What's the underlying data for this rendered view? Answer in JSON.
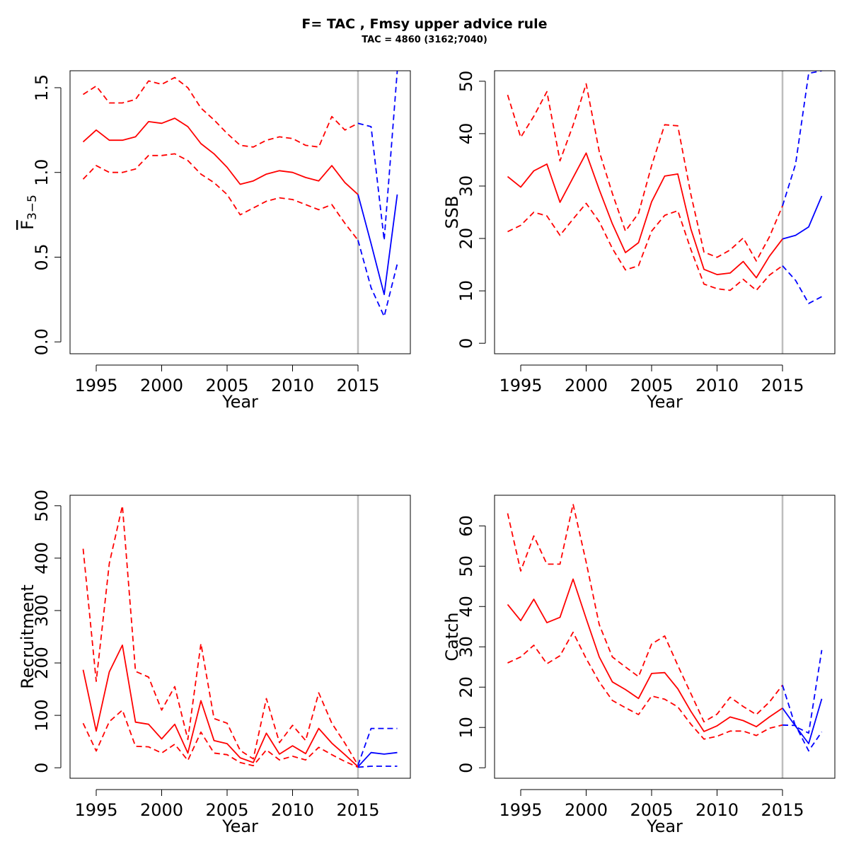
{
  "title": "F= TAC , Fmsy upper advice rule",
  "subtitle": "TAC = 4860 (3162;7040)",
  "colors": {
    "historical": "#ff0000",
    "forecast": "#0000ff",
    "reference_line": "#bebebe",
    "frame": "#000000"
  },
  "chart_data": [
    {
      "type": "line",
      "panel": "top-left",
      "xlabel": "Year",
      "ylabel": "F",
      "ylabel_sub": "3−5",
      "ylabel_overline": true,
      "xlim": [
        1993,
        2019
      ],
      "ylim": [
        -0.07,
        1.6
      ],
      "xticks": [
        1995,
        2000,
        2005,
        2010,
        2015
      ],
      "yticks": [
        0.0,
        0.5,
        1.0,
        1.5
      ],
      "ytick_labels": [
        "0.0",
        "0.5",
        "1.0",
        "1.5"
      ],
      "reference_year": 2015,
      "series": [
        {
          "role": "historical",
          "style": "solid",
          "x": [
            1994,
            1995,
            1996,
            1997,
            1998,
            1999,
            2000,
            2001,
            2002,
            2003,
            2004,
            2005,
            2006,
            2007,
            2008,
            2009,
            2010,
            2011,
            2012,
            2013,
            2014,
            2015
          ],
          "y": [
            1.18,
            1.25,
            1.19,
            1.19,
            1.21,
            1.3,
            1.29,
            1.32,
            1.27,
            1.17,
            1.11,
            1.03,
            0.93,
            0.95,
            0.99,
            1.01,
            1.0,
            0.97,
            0.95,
            1.04,
            0.94,
            0.87
          ]
        },
        {
          "role": "historical",
          "style": "dashed",
          "x": [
            1994,
            1995,
            1996,
            1997,
            1998,
            1999,
            2000,
            2001,
            2002,
            2003,
            2004,
            2005,
            2006,
            2007,
            2008,
            2009,
            2010,
            2011,
            2012,
            2013,
            2014,
            2015
          ],
          "y": [
            1.46,
            1.51,
            1.41,
            1.41,
            1.43,
            1.54,
            1.52,
            1.56,
            1.5,
            1.38,
            1.31,
            1.23,
            1.16,
            1.15,
            1.19,
            1.21,
            1.2,
            1.16,
            1.15,
            1.33,
            1.25,
            1.29
          ]
        },
        {
          "role": "historical",
          "style": "dashed",
          "x": [
            1994,
            1995,
            1996,
            1997,
            1998,
            1999,
            2000,
            2001,
            2002,
            2003,
            2004,
            2005,
            2006,
            2007,
            2008,
            2009,
            2010,
            2011,
            2012,
            2013,
            2014,
            2015
          ],
          "y": [
            0.96,
            1.04,
            1.0,
            1.0,
            1.02,
            1.1,
            1.1,
            1.11,
            1.07,
            0.99,
            0.94,
            0.87,
            0.75,
            0.79,
            0.83,
            0.85,
            0.84,
            0.81,
            0.78,
            0.81,
            0.7,
            0.6
          ]
        },
        {
          "role": "forecast",
          "style": "solid",
          "x": [
            2015,
            2016,
            2017,
            2018
          ],
          "y": [
            0.87,
            0.58,
            0.28,
            0.87
          ]
        },
        {
          "role": "forecast",
          "style": "dashed",
          "x": [
            2015,
            2016,
            2017,
            2018
          ],
          "y": [
            1.29,
            1.27,
            0.6,
            1.6
          ]
        },
        {
          "role": "forecast",
          "style": "dashed",
          "x": [
            2015,
            2016,
            2017,
            2018
          ],
          "y": [
            0.6,
            0.32,
            0.15,
            0.46
          ]
        }
      ]
    },
    {
      "type": "line",
      "panel": "top-right",
      "xlabel": "Year",
      "ylabel": "SSB",
      "xlim": [
        1993,
        2019
      ],
      "ylim": [
        -2,
        52
      ],
      "xticks": [
        1995,
        2000,
        2005,
        2010,
        2015
      ],
      "yticks": [
        0,
        10,
        20,
        30,
        40,
        50
      ],
      "ytick_labels": [
        "0",
        "10",
        "20",
        "30",
        "40",
        "50"
      ],
      "reference_year": 2015,
      "series": [
        {
          "role": "historical",
          "style": "solid",
          "x": [
            1994,
            1995,
            1996,
            1997,
            1998,
            1999,
            2000,
            2001,
            2002,
            2003,
            2004,
            2005,
            2006,
            2007,
            2008,
            2009,
            2010,
            2011,
            2012,
            2013,
            2014,
            2015
          ],
          "y": [
            31.8,
            29.8,
            32.9,
            34.2,
            26.9,
            31.6,
            36.3,
            29.3,
            22.8,
            17.3,
            19.2,
            27.0,
            31.9,
            32.3,
            21.8,
            14.1,
            13.1,
            13.4,
            15.6,
            12.5,
            16.6,
            19.9
          ]
        },
        {
          "role": "historical",
          "style": "dashed",
          "x": [
            1994,
            1995,
            1996,
            1997,
            1998,
            1999,
            2000,
            2001,
            2002,
            2003,
            2004,
            2005,
            2006,
            2007,
            2008,
            2009,
            2010,
            2011,
            2012,
            2013,
            2014,
            2015
          ],
          "y": [
            47.4,
            39.3,
            43.3,
            48.0,
            34.8,
            41.6,
            49.5,
            36.6,
            28.6,
            21.4,
            24.8,
            33.9,
            41.7,
            41.5,
            28.4,
            17.4,
            16.4,
            17.8,
            20.1,
            15.7,
            20.3,
            26.2
          ]
        },
        {
          "role": "historical",
          "style": "dashed",
          "x": [
            1994,
            1995,
            1996,
            1997,
            1998,
            1999,
            2000,
            2001,
            2002,
            2003,
            2004,
            2005,
            2006,
            2007,
            2008,
            2009,
            2010,
            2011,
            2012,
            2013,
            2014,
            2015
          ],
          "y": [
            21.3,
            22.5,
            25.0,
            24.3,
            20.6,
            23.7,
            26.7,
            23.2,
            18.1,
            14.0,
            14.8,
            21.4,
            24.4,
            25.3,
            17.9,
            11.3,
            10.4,
            10.1,
            12.2,
            10.1,
            13.0,
            14.8
          ]
        },
        {
          "role": "forecast",
          "style": "solid",
          "x": [
            2015,
            2016,
            2017,
            2018
          ],
          "y": [
            19.9,
            20.6,
            22.2,
            28.1
          ]
        },
        {
          "role": "forecast",
          "style": "dashed",
          "x": [
            2015,
            2016,
            2017,
            2018
          ],
          "y": [
            26.2,
            34.2,
            51.5,
            52.0
          ]
        },
        {
          "role": "forecast",
          "style": "dashed",
          "x": [
            2015,
            2016,
            2017,
            2018
          ],
          "y": [
            14.8,
            12.0,
            7.6,
            8.9
          ]
        }
      ]
    },
    {
      "type": "line",
      "panel": "bottom-left",
      "xlabel": "Year",
      "ylabel": "Recruitment",
      "xlim": [
        1993,
        2019
      ],
      "ylim": [
        -20,
        520
      ],
      "xticks": [
        1995,
        2000,
        2005,
        2010,
        2015
      ],
      "yticks": [
        0,
        100,
        200,
        300,
        400,
        500
      ],
      "ytick_labels": [
        "0",
        "100",
        "200",
        "300",
        "400",
        "500"
      ],
      "reference_year": 2015,
      "series": [
        {
          "role": "historical",
          "style": "solid",
          "x": [
            1994,
            1995,
            1996,
            1997,
            1998,
            1999,
            2000,
            2001,
            2002,
            2003,
            2004,
            2005,
            2006,
            2007,
            2008,
            2009,
            2010,
            2011,
            2012,
            2013,
            2014,
            2015
          ],
          "y": [
            187,
            70,
            183,
            234,
            87,
            83,
            55,
            83,
            28,
            128,
            52,
            46,
            19,
            10,
            66,
            26,
            42,
            27,
            75,
            47,
            25,
            2
          ]
        },
        {
          "role": "historical",
          "style": "dashed",
          "x": [
            1994,
            1995,
            1996,
            1997,
            1998,
            1999,
            2000,
            2001,
            2002,
            2003,
            2004,
            2005,
            2006,
            2007,
            2008,
            2009,
            2010,
            2011,
            2012,
            2013,
            2014,
            2015
          ],
          "y": [
            418,
            165,
            390,
            500,
            184,
            173,
            110,
            155,
            54,
            237,
            94,
            85,
            33,
            17,
            132,
            48,
            81,
            52,
            143,
            85,
            47,
            5
          ]
        },
        {
          "role": "historical",
          "style": "dashed",
          "x": [
            1994,
            1995,
            1996,
            1997,
            1998,
            1999,
            2000,
            2001,
            2002,
            2003,
            2004,
            2005,
            2006,
            2007,
            2008,
            2009,
            2010,
            2011,
            2012,
            2013,
            2014,
            2015
          ],
          "y": [
            85,
            32,
            88,
            110,
            41,
            40,
            28,
            45,
            14,
            68,
            28,
            25,
            10,
            4,
            34,
            15,
            22,
            15,
            39,
            25,
            12,
            1
          ]
        },
        {
          "role": "forecast",
          "style": "solid",
          "x": [
            2015,
            2016,
            2017,
            2018
          ],
          "y": [
            2,
            29,
            26,
            29
          ]
        },
        {
          "role": "forecast",
          "style": "dashed",
          "x": [
            2015,
            2016,
            2017,
            2018
          ],
          "y": [
            5,
            75,
            75,
            75
          ]
        },
        {
          "role": "forecast",
          "style": "dashed",
          "x": [
            2015,
            2016,
            2017,
            2018
          ],
          "y": [
            1,
            3,
            3,
            3
          ]
        }
      ]
    },
    {
      "type": "line",
      "panel": "bottom-right",
      "xlabel": "Year",
      "ylabel": "Catch",
      "xlim": [
        1993,
        2019
      ],
      "ylim": [
        -2.6,
        67.6
      ],
      "xticks": [
        1995,
        2000,
        2005,
        2010,
        2015
      ],
      "yticks": [
        0,
        10,
        20,
        30,
        40,
        50,
        60
      ],
      "ytick_labels": [
        "0",
        "10",
        "20",
        "30",
        "40",
        "50",
        "60"
      ],
      "reference_year": 2015,
      "series": [
        {
          "role": "historical",
          "style": "solid",
          "x": [
            1994,
            1995,
            1996,
            1997,
            1998,
            1999,
            2000,
            2001,
            2002,
            2003,
            2004,
            2005,
            2006,
            2007,
            2008,
            2009,
            2010,
            2011,
            2012,
            2013,
            2014,
            2015
          ],
          "y": [
            40.5,
            36.5,
            41.8,
            36.0,
            37.3,
            46.8,
            37.0,
            27.5,
            21.3,
            19.4,
            17.2,
            23.4,
            23.6,
            19.6,
            14.0,
            9.0,
            10.4,
            12.6,
            11.7,
            10.2,
            12.6,
            14.8
          ]
        },
        {
          "role": "historical",
          "style": "dashed",
          "x": [
            1994,
            1995,
            1996,
            1997,
            1998,
            1999,
            2000,
            2001,
            2002,
            2003,
            2004,
            2005,
            2006,
            2007,
            2008,
            2009,
            2010,
            2011,
            2012,
            2013,
            2014,
            2015
          ],
          "y": [
            63.1,
            48.8,
            57.5,
            50.5,
            50.5,
            65.4,
            51.0,
            35.5,
            27.5,
            25.0,
            22.6,
            30.7,
            32.7,
            25.4,
            18.4,
            11.4,
            13.3,
            17.5,
            15.2,
            13.2,
            16.3,
            20.5
          ]
        },
        {
          "role": "historical",
          "style": "dashed",
          "x": [
            1994,
            1995,
            1996,
            1997,
            1998,
            1999,
            2000,
            2001,
            2002,
            2003,
            2004,
            2005,
            2006,
            2007,
            2008,
            2009,
            2010,
            2011,
            2012,
            2013,
            2014,
            2015
          ],
          "y": [
            26.0,
            27.5,
            30.4,
            25.8,
            27.8,
            33.6,
            27.1,
            21.3,
            16.7,
            14.9,
            13.2,
            17.8,
            17.0,
            15.1,
            10.8,
            7.1,
            7.8,
            9.1,
            9.1,
            8.0,
            9.8,
            10.6
          ]
        },
        {
          "role": "forecast",
          "style": "solid",
          "x": [
            2015,
            2016,
            2017,
            2018
          ],
          "y": [
            14.8,
            10.3,
            6.0,
            17.1
          ]
        },
        {
          "role": "forecast",
          "style": "dashed",
          "x": [
            2015,
            2016,
            2017,
            2018
          ],
          "y": [
            20.5,
            10.2,
            8.6,
            29.2
          ]
        },
        {
          "role": "forecast",
          "style": "dashed",
          "x": [
            2015,
            2016,
            2017,
            2018
          ],
          "y": [
            10.6,
            10.5,
            4.2,
            8.9
          ]
        }
      ]
    }
  ]
}
